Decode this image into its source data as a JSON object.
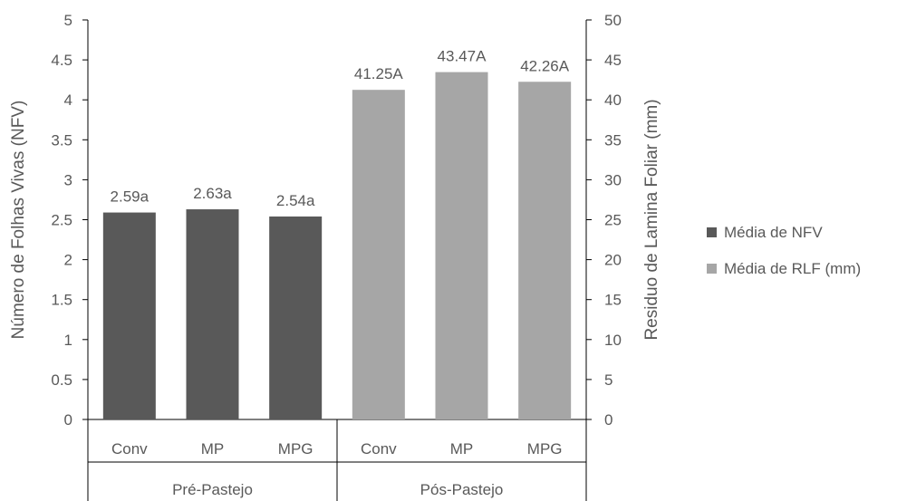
{
  "chart_data": {
    "type": "bar",
    "groups": [
      {
        "label": "Pré-Pastejo",
        "categories": [
          "Conv",
          "MP",
          "MPG"
        ]
      },
      {
        "label": "Pós-Pastejo",
        "categories": [
          "Conv",
          "MP",
          "MPG"
        ]
      }
    ],
    "series": [
      {
        "name": "Média de NFV",
        "axis": "left",
        "group": 0,
        "color": "#595959",
        "values": [
          2.59,
          2.63,
          2.54
        ],
        "labels": [
          "2.59a",
          "2.63a",
          "2.54a"
        ]
      },
      {
        "name": "Média de RLF (mm)",
        "axis": "right",
        "group": 1,
        "color": "#A6A6A6",
        "values": [
          41.25,
          43.47,
          42.26
        ],
        "labels": [
          "41.25A",
          "43.47A",
          "42.26A"
        ]
      }
    ],
    "y_left": {
      "label": "Número de Folhas Vivas (NFV)",
      "min": 0,
      "max": 5,
      "ticks": [
        "0",
        "0.5",
        "1",
        "1.5",
        "2",
        "2.5",
        "3",
        "3.5",
        "4",
        "4.5",
        "5"
      ]
    },
    "y_right": {
      "label": "Residuo de Lamina Foliar (mm)",
      "min": 0,
      "max": 50,
      "ticks": [
        "0",
        "5",
        "10",
        "15",
        "20",
        "25",
        "30",
        "35",
        "40",
        "45",
        "50"
      ]
    },
    "grid": false,
    "legend_position": "right"
  }
}
